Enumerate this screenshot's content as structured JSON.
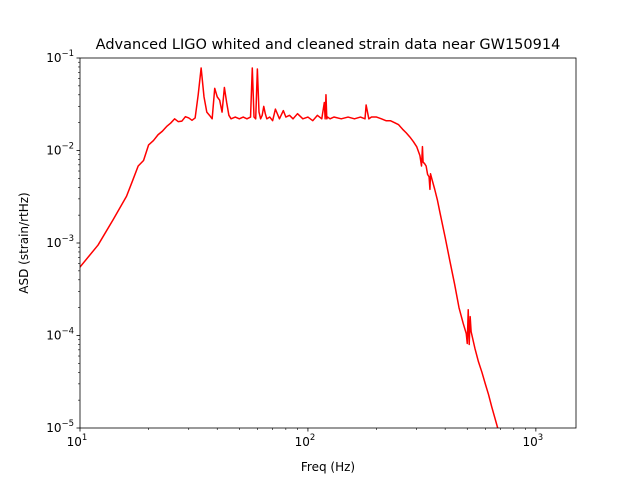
{
  "chart_data": {
    "type": "line",
    "title": "Advanced LIGO whited and cleaned strain data near GW150914",
    "xlabel": "Freq (Hz)",
    "ylabel": "ASD (strain/rtHz)",
    "xscale": "log",
    "yscale": "log",
    "xlim": [
      10,
      1500
    ],
    "ylim": [
      1e-05,
      0.1
    ],
    "grid": false,
    "legend": "none",
    "line_color": "#ff0000",
    "x_ticks": [
      {
        "value": 10,
        "base": "10",
        "exp": "1"
      },
      {
        "value": 100,
        "base": "10",
        "exp": "2"
      },
      {
        "value": 1000,
        "base": "10",
        "exp": "3"
      }
    ],
    "y_ticks": [
      {
        "value": 1e-05,
        "base": "10",
        "exp": "−5"
      },
      {
        "value": 0.0001,
        "base": "10",
        "exp": "−4"
      },
      {
        "value": 0.001,
        "base": "10",
        "exp": "−3"
      },
      {
        "value": 0.01,
        "base": "10",
        "exp": "−2"
      },
      {
        "value": 0.1,
        "base": "10",
        "exp": "−1"
      }
    ],
    "series": [
      {
        "x": [
          10,
          12,
          14,
          16,
          17,
          18,
          19,
          20,
          21,
          22,
          23,
          24,
          25,
          26,
          27,
          28,
          29,
          30,
          31,
          32,
          33,
          34,
          35,
          36,
          37,
          38,
          39,
          40,
          41,
          42,
          43,
          44,
          45,
          46,
          48,
          50,
          52,
          54,
          56,
          57,
          58,
          59,
          60,
          61,
          62,
          63,
          64,
          65,
          66,
          68,
          70,
          72,
          75,
          78,
          80,
          83,
          86,
          90,
          95,
          100,
          105,
          110,
          115,
          118,
          119,
          120,
          121,
          122,
          125,
          130,
          140,
          150,
          160,
          170,
          178,
          180,
          185,
          190,
          200,
          210,
          220,
          230,
          240,
          250,
          260,
          270,
          280,
          290,
          300,
          310,
          315,
          318,
          320,
          325,
          330,
          335,
          340,
          343,
          345,
          350,
          360,
          370,
          380,
          400,
          420,
          440,
          460,
          480,
          495,
          500,
          505,
          510,
          515,
          520,
          540,
          560,
          580,
          600,
          620,
          640,
          660,
          680
        ],
        "y": [
          0.00055,
          0.00095,
          0.0018,
          0.0032,
          0.0047,
          0.0068,
          0.0078,
          0.0115,
          0.0128,
          0.0148,
          0.0162,
          0.0182,
          0.0198,
          0.022,
          0.0205,
          0.0208,
          0.0232,
          0.0225,
          0.0212,
          0.0225,
          0.04,
          0.078,
          0.038,
          0.026,
          0.024,
          0.022,
          0.047,
          0.038,
          0.035,
          0.026,
          0.048,
          0.033,
          0.024,
          0.022,
          0.023,
          0.022,
          0.023,
          0.022,
          0.023,
          0.078,
          0.023,
          0.022,
          0.076,
          0.026,
          0.022,
          0.024,
          0.03,
          0.025,
          0.022,
          0.023,
          0.021,
          0.028,
          0.022,
          0.027,
          0.023,
          0.024,
          0.022,
          0.025,
          0.022,
          0.023,
          0.021,
          0.024,
          0.022,
          0.033,
          0.022,
          0.04,
          0.022,
          0.023,
          0.022,
          0.023,
          0.022,
          0.023,
          0.022,
          0.023,
          0.022,
          0.031,
          0.022,
          0.023,
          0.023,
          0.022,
          0.021,
          0.021,
          0.02,
          0.019,
          0.017,
          0.0155,
          0.014,
          0.0125,
          0.011,
          0.0088,
          0.0068,
          0.011,
          0.0075,
          0.0072,
          0.0068,
          0.0055,
          0.0052,
          0.0038,
          0.0056,
          0.0049,
          0.0038,
          0.0029,
          0.0021,
          0.00115,
          0.00063,
          0.00036,
          0.0002,
          0.000135,
          0.000105,
          8.2e-05,
          0.00019,
          8e-05,
          0.00016,
          0.00011,
          7.3e-05,
          5.2e-05,
          4e-05,
          3e-05,
          2.3e-05,
          1.7e-05,
          1.3e-05,
          1e-05
        ]
      }
    ]
  }
}
